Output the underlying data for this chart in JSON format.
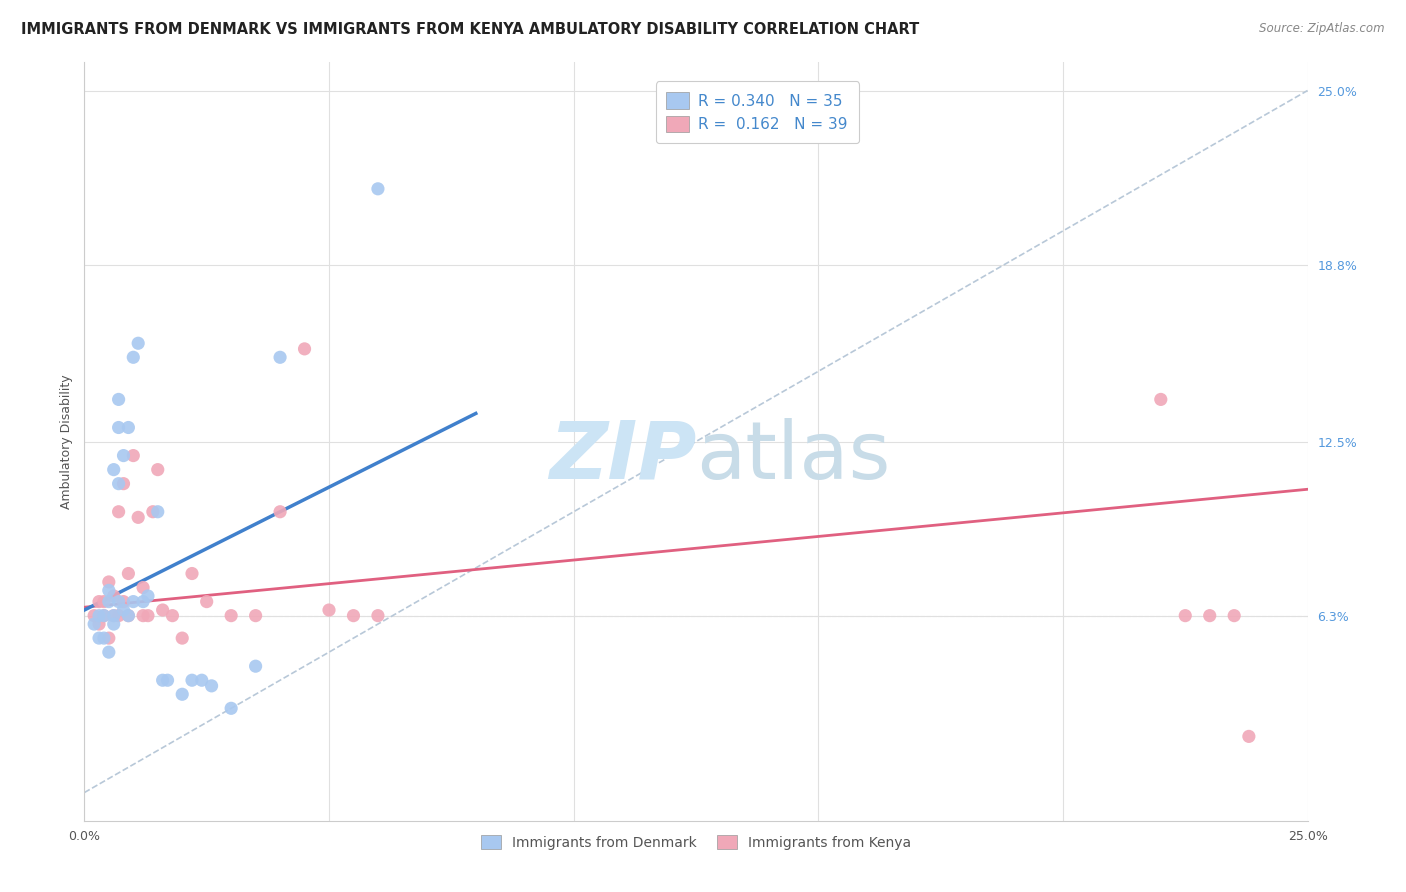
{
  "title": "IMMIGRANTS FROM DENMARK VS IMMIGRANTS FROM KENYA AMBULATORY DISABILITY CORRELATION CHART",
  "source": "Source: ZipAtlas.com",
  "ylabel": "Ambulatory Disability",
  "xlim": [
    0.0,
    0.25
  ],
  "ylim": [
    -0.01,
    0.26
  ],
  "ytick_labels_right": [
    "25.0%",
    "18.8%",
    "12.5%",
    "6.3%"
  ],
  "ytick_positions_right": [
    0.25,
    0.188,
    0.125,
    0.063
  ],
  "denmark_color": "#a8c8f0",
  "kenya_color": "#f0a8b8",
  "denmark_line_color": "#4080cc",
  "kenya_line_color": "#e06080",
  "diagonal_color": "#b8c8d8",
  "denmark_R": "0.340",
  "denmark_N": "35",
  "kenya_R": "0.162",
  "kenya_N": "39",
  "denmark_scatter_x": [
    0.002,
    0.003,
    0.003,
    0.004,
    0.004,
    0.005,
    0.005,
    0.005,
    0.006,
    0.006,
    0.006,
    0.007,
    0.007,
    0.007,
    0.007,
    0.008,
    0.008,
    0.009,
    0.009,
    0.01,
    0.01,
    0.011,
    0.012,
    0.013,
    0.015,
    0.016,
    0.017,
    0.02,
    0.022,
    0.024,
    0.026,
    0.03,
    0.035,
    0.04,
    0.06
  ],
  "denmark_scatter_y": [
    0.06,
    0.055,
    0.063,
    0.063,
    0.055,
    0.068,
    0.072,
    0.05,
    0.063,
    0.06,
    0.115,
    0.13,
    0.14,
    0.068,
    0.11,
    0.12,
    0.065,
    0.13,
    0.063,
    0.068,
    0.155,
    0.16,
    0.068,
    0.07,
    0.1,
    0.04,
    0.04,
    0.035,
    0.04,
    0.04,
    0.038,
    0.03,
    0.045,
    0.155,
    0.215
  ],
  "kenya_scatter_x": [
    0.002,
    0.003,
    0.003,
    0.004,
    0.004,
    0.005,
    0.005,
    0.006,
    0.006,
    0.007,
    0.007,
    0.008,
    0.008,
    0.009,
    0.009,
    0.01,
    0.011,
    0.012,
    0.012,
    0.013,
    0.014,
    0.015,
    0.016,
    0.018,
    0.02,
    0.022,
    0.025,
    0.03,
    0.035,
    0.04,
    0.045,
    0.05,
    0.055,
    0.06,
    0.22,
    0.225,
    0.23,
    0.235,
    0.238
  ],
  "kenya_scatter_y": [
    0.063,
    0.068,
    0.06,
    0.068,
    0.063,
    0.055,
    0.075,
    0.063,
    0.07,
    0.063,
    0.1,
    0.068,
    0.11,
    0.063,
    0.078,
    0.12,
    0.098,
    0.063,
    0.073,
    0.063,
    0.1,
    0.115,
    0.065,
    0.063,
    0.055,
    0.078,
    0.068,
    0.063,
    0.063,
    0.1,
    0.158,
    0.065,
    0.063,
    0.063,
    0.14,
    0.063,
    0.063,
    0.063,
    0.02
  ],
  "denmark_line_x": [
    0.0,
    0.08
  ],
  "denmark_line_y": [
    0.065,
    0.135
  ],
  "kenya_line_x": [
    0.0,
    0.25
  ],
  "kenya_line_y": [
    0.066,
    0.108
  ],
  "diagonal_line_x": [
    0.0,
    0.25
  ],
  "diagonal_line_y": [
    0.0,
    0.25
  ],
  "background_color": "#ffffff",
  "grid_color": "#e0e0e0",
  "watermark_color": "#cce4f5",
  "title_fontsize": 10.5,
  "axis_label_fontsize": 9,
  "tick_fontsize": 9,
  "legend_fontsize": 11,
  "scatter_size": 90
}
